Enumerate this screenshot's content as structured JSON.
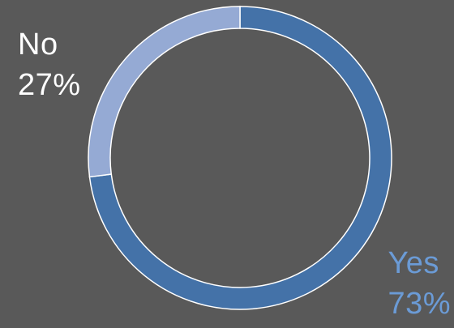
{
  "chart_data": {
    "type": "pie",
    "donut": true,
    "title": "",
    "slices": [
      {
        "label": "Yes",
        "value": 73,
        "value_label": "73%",
        "color": "#4472a8",
        "label_color": "#6b9bd6"
      },
      {
        "label": "No",
        "value": 27,
        "value_label": "27%",
        "color": "#95aad4",
        "label_color": "#ffffff"
      }
    ],
    "background": "#595959",
    "separator_color": "#ffffff"
  }
}
